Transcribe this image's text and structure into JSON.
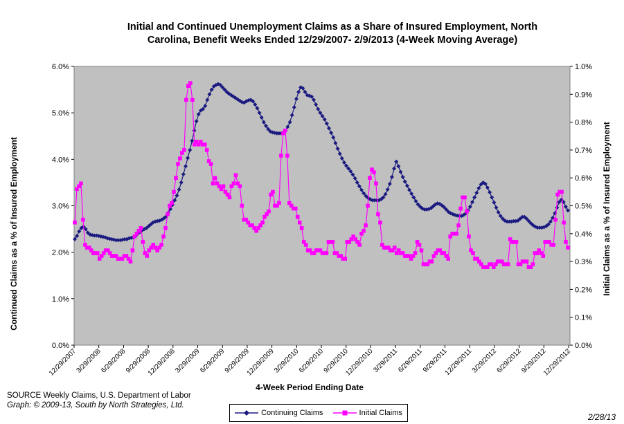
{
  "chart_data": {
    "type": "line",
    "title": "Initial and Continued Unemployment Claims as a Share of Insured Employment, North Carolina, Benefit Weeks Ended 12/29/2007- 2/9/2013 (4-Week Moving Average)",
    "title_line1": "Initial and Continued Unemployment Claims as a Share of Insured Employment, North",
    "title_line2": "Carolina, Benefit Weeks Ended 12/29/2007- 2/9/2013 (4-Week Moving Average)",
    "xlabel": "4-Week Period Ending Date",
    "ylabel_left": "Continued Claims as a % of Insured Employment",
    "ylabel_right": "Initial Claims as a % of Insured Employment",
    "ylim_left": [
      0,
      6
    ],
    "ylim_right": [
      0,
      1
    ],
    "yticks_left": [
      "0.0%",
      "1.0%",
      "2.0%",
      "3.0%",
      "4.0%",
      "5.0%",
      "6.0%"
    ],
    "yticks_right": [
      "0.0%",
      "0.1%",
      "0.2%",
      "0.3%",
      "0.4%",
      "0.5%",
      "0.6%",
      "0.7%",
      "0.8%",
      "0.9%",
      "1.0%"
    ],
    "xticks": [
      "12/29/2007",
      "3/29/2008",
      "6/29/2008",
      "9/29/2008",
      "12/29/2008",
      "3/29/2009",
      "6/29/2009",
      "9/29/2009",
      "12/29/2009",
      "3/29/2010",
      "6/29/2010",
      "9/29/2010",
      "12/29/2010",
      "3/29/2011",
      "6/29/2011",
      "9/29/2011",
      "12/29/2011",
      "3/29/2012",
      "6/29/2012",
      "9/29/2012",
      "12/29/2012"
    ],
    "x_start": "12/29/2007",
    "x_end": "2/9/2013",
    "legend_position": "bottom",
    "grid": false,
    "series": [
      {
        "name": "Continuing Claims",
        "axis": "left",
        "color": "#1a1a80",
        "marker": "diamond",
        "values": [
          2.28,
          2.35,
          2.45,
          2.52,
          2.55,
          2.5,
          2.42,
          2.38,
          2.37,
          2.36,
          2.36,
          2.35,
          2.34,
          2.33,
          2.32,
          2.3,
          2.29,
          2.28,
          2.27,
          2.26,
          2.26,
          2.26,
          2.27,
          2.28,
          2.28,
          2.3,
          2.31,
          2.32,
          2.35,
          2.4,
          2.44,
          2.47,
          2.5,
          2.52,
          2.56,
          2.6,
          2.64,
          2.66,
          2.67,
          2.68,
          2.7,
          2.73,
          2.77,
          2.85,
          2.93,
          3.02,
          3.12,
          3.22,
          3.35,
          3.5,
          3.68,
          3.85,
          4.03,
          4.2,
          4.4,
          4.62,
          4.82,
          4.97,
          5.05,
          5.08,
          5.15,
          5.28,
          5.4,
          5.5,
          5.57,
          5.6,
          5.62,
          5.6,
          5.55,
          5.5,
          5.45,
          5.41,
          5.38,
          5.35,
          5.32,
          5.29,
          5.26,
          5.23,
          5.22,
          5.25,
          5.27,
          5.28,
          5.25,
          5.18,
          5.1,
          5.0,
          4.9,
          4.8,
          4.72,
          4.65,
          4.6,
          4.58,
          4.57,
          4.56,
          4.56,
          4.56,
          4.58,
          4.62,
          4.7,
          4.8,
          4.95,
          5.12,
          5.3,
          5.45,
          5.55,
          5.53,
          5.45,
          5.38,
          5.37,
          5.35,
          5.28,
          5.18,
          5.08,
          5.0,
          4.93,
          4.86,
          4.77,
          4.67,
          4.57,
          4.47,
          4.35,
          4.23,
          4.12,
          4.02,
          3.93,
          3.86,
          3.8,
          3.74,
          3.67,
          3.59,
          3.5,
          3.42,
          3.34,
          3.27,
          3.21,
          3.17,
          3.14,
          3.12,
          3.12,
          3.12,
          3.12,
          3.14,
          3.18,
          3.25,
          3.35,
          3.47,
          3.62,
          3.8,
          3.95,
          3.85,
          3.73,
          3.62,
          3.52,
          3.43,
          3.34,
          3.26,
          3.18,
          3.1,
          3.03,
          2.98,
          2.94,
          2.92,
          2.92,
          2.93,
          2.95,
          2.99,
          3.03,
          3.05,
          3.04,
          3.01,
          2.97,
          2.92,
          2.87,
          2.84,
          2.82,
          2.8,
          2.79,
          2.78,
          2.78,
          2.8,
          2.84,
          2.9,
          2.98,
          3.08,
          3.18,
          3.28,
          3.38,
          3.46,
          3.5,
          3.47,
          3.39,
          3.29,
          3.18,
          3.07,
          2.96,
          2.86,
          2.78,
          2.72,
          2.68,
          2.66,
          2.66,
          2.66,
          2.67,
          2.67,
          2.68,
          2.72,
          2.76,
          2.76,
          2.72,
          2.67,
          2.62,
          2.58,
          2.55,
          2.53,
          2.53,
          2.53,
          2.54,
          2.56,
          2.6,
          2.66,
          2.74,
          2.84,
          2.96,
          3.08,
          3.13,
          3.08,
          2.98,
          2.9
        ]
      },
      {
        "name": "Initial Claims",
        "axis": "right",
        "color": "#ff00ff",
        "marker": "square",
        "values": [
          0.44,
          0.56,
          0.57,
          0.58,
          0.45,
          0.36,
          0.35,
          0.35,
          0.34,
          0.33,
          0.33,
          0.33,
          0.31,
          0.32,
          0.33,
          0.34,
          0.34,
          0.33,
          0.32,
          0.32,
          0.32,
          0.31,
          0.31,
          0.31,
          0.32,
          0.32,
          0.31,
          0.3,
          0.34,
          0.39,
          0.4,
          0.41,
          0.42,
          0.37,
          0.33,
          0.32,
          0.34,
          0.35,
          0.36,
          0.35,
          0.34,
          0.35,
          0.36,
          0.39,
          0.42,
          0.47,
          0.5,
          0.51,
          0.55,
          0.6,
          0.65,
          0.67,
          0.69,
          0.7,
          0.88,
          0.93,
          0.94,
          0.88,
          0.72,
          0.73,
          0.72,
          0.73,
          0.72,
          0.72,
          0.7,
          0.66,
          0.65,
          0.58,
          0.6,
          0.58,
          0.57,
          0.56,
          0.57,
          0.55,
          0.54,
          0.53,
          0.57,
          0.58,
          0.61,
          0.58,
          0.57,
          0.5,
          0.45,
          0.45,
          0.44,
          0.43,
          0.43,
          0.42,
          0.41,
          0.42,
          0.43,
          0.44,
          0.46,
          0.47,
          0.48,
          0.54,
          0.55,
          0.5,
          0.5,
          0.51,
          0.68,
          0.76,
          0.77,
          0.68,
          0.51,
          0.5,
          0.49,
          0.49,
          0.46,
          0.44,
          0.42,
          0.37,
          0.36,
          0.34,
          0.34,
          0.33,
          0.33,
          0.34,
          0.34,
          0.34,
          0.33,
          0.33,
          0.33,
          0.37,
          0.37,
          0.37,
          0.33,
          0.33,
          0.32,
          0.32,
          0.31,
          0.31,
          0.37,
          0.37,
          0.38,
          0.39,
          0.38,
          0.37,
          0.36,
          0.4,
          0.41,
          0.43,
          0.5,
          0.6,
          0.63,
          0.62,
          0.58,
          0.47,
          0.44,
          0.36,
          0.35,
          0.35,
          0.35,
          0.34,
          0.34,
          0.35,
          0.33,
          0.34,
          0.33,
          0.33,
          0.32,
          0.32,
          0.32,
          0.31,
          0.32,
          0.33,
          0.37,
          0.36,
          0.34,
          0.29,
          0.29,
          0.29,
          0.3,
          0.3,
          0.32,
          0.33,
          0.34,
          0.34,
          0.33,
          0.33,
          0.32,
          0.31,
          0.39,
          0.4,
          0.4,
          0.4,
          0.43,
          0.49,
          0.53,
          0.53,
          0.48,
          0.39,
          0.34,
          0.33,
          0.31,
          0.31,
          0.3,
          0.29,
          0.28,
          0.28,
          0.28,
          0.29,
          0.29,
          0.28,
          0.29,
          0.3,
          0.3,
          0.3,
          0.29,
          0.29,
          0.29,
          0.38,
          0.37,
          0.37,
          0.37,
          0.29,
          0.29,
          0.3,
          0.3,
          0.3,
          0.28,
          0.28,
          0.29,
          0.33,
          0.33,
          0.34,
          0.33,
          0.32,
          0.37,
          0.37,
          0.37,
          0.36,
          0.36,
          0.45,
          0.54,
          0.55,
          0.55,
          0.44,
          0.37,
          0.35
        ]
      }
    ]
  },
  "source": {
    "line1": "SOURCE  Weekly Claims, U.S. Department of Labor",
    "line2": "Graph: © 2009-13, South by North Strategies, Ltd."
  },
  "date_stamp": "2/28/13",
  "colors": {
    "plot_background": "#c0c0c0",
    "continuing": "#1a1a80",
    "initial": "#ff00ff"
  }
}
